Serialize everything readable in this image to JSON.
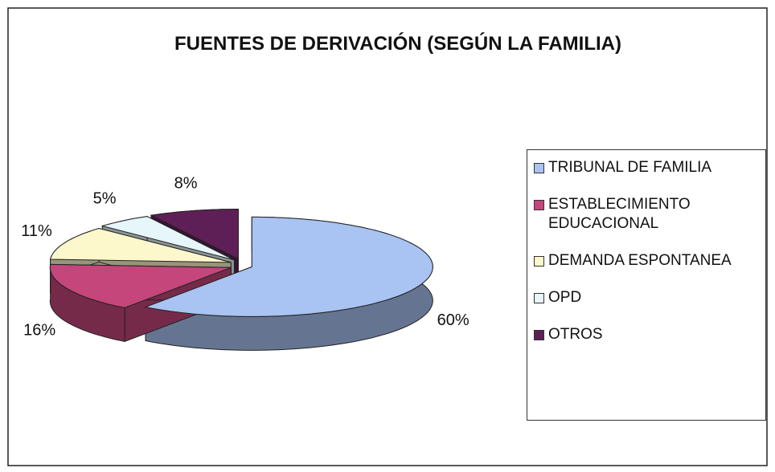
{
  "chart_data": {
    "type": "pie",
    "title": "FUENTES DE DERIVACIÓN (SEGÚN LA FAMILIA)",
    "categories": [
      "TRIBUNAL DE FAMILIA",
      "ESTABLECIMIENTO EDUCACIONAL",
      "DEMANDA ESPONTANEA",
      "OPD",
      "OTROS"
    ],
    "values": [
      60,
      16,
      11,
      5,
      8
    ],
    "value_labels": [
      "60%",
      "16%",
      "11%",
      "5%",
      "8%"
    ],
    "colors": [
      "#a9c3f2",
      "#c4467a",
      "#fcf8cc",
      "#e6f6fa",
      "#5e1f56"
    ],
    "legend": "right"
  }
}
